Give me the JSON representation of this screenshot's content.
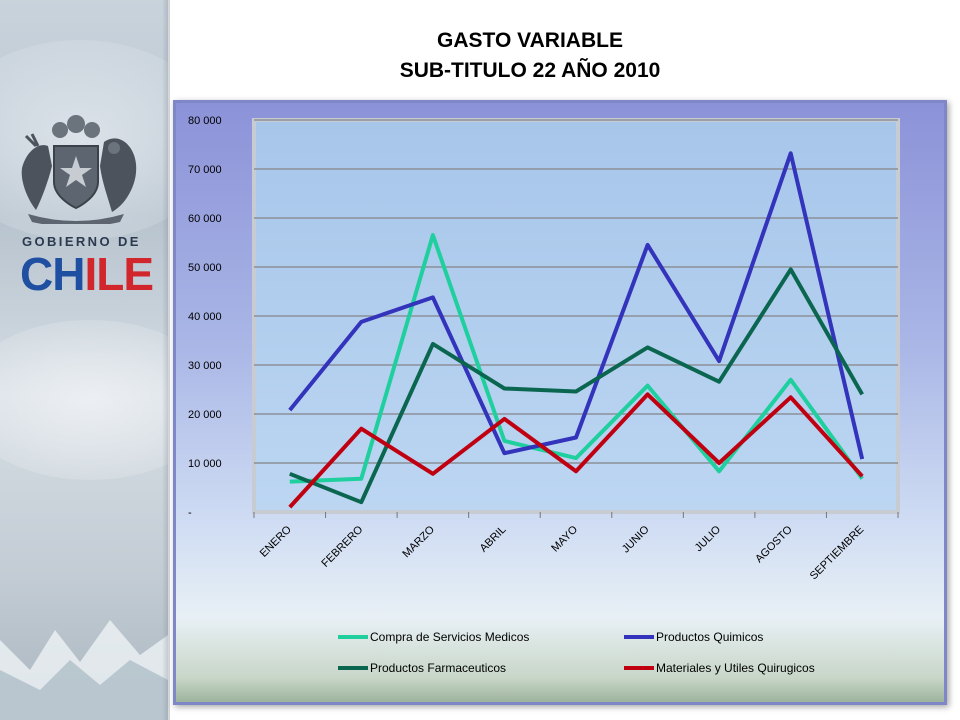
{
  "title_line1": "GASTO VARIABLE",
  "title_line2": "SUB-TITULO 22 AÑO 2010",
  "logo": {
    "icon": "chilean-coat-of-arms-icon",
    "line1": "GOBIERNO DE",
    "line2": "CHILE",
    "colors": {
      "blue": "#1f4fa0",
      "red": "#d1262b"
    }
  },
  "chart_data": {
    "type": "line",
    "categories": [
      "ENERO",
      "FEBRERO",
      "MARZO",
      "ABRIL",
      "MAYO",
      "JUNIO",
      "JULIO",
      "AGOSTO",
      "SEPTIEMBRE"
    ],
    "ylim": [
      0,
      80000
    ],
    "yticks": [
      0,
      10000,
      20000,
      30000,
      40000,
      50000,
      60000,
      70000,
      80000
    ],
    "ytick_labels": [
      "-",
      "10 000",
      "20 000",
      "30 000",
      "40 000",
      "50 000",
      "60 000",
      "70 000",
      "80 000"
    ],
    "grid": true,
    "legend_position": "bottom",
    "series": [
      {
        "name": "Compra de Servicios Medicos",
        "color": "#1fcf9e",
        "values": [
          6200,
          6800,
          56500,
          14500,
          11000,
          25800,
          8300,
          27000,
          6800
        ]
      },
      {
        "name": "Productos Quimicos",
        "color": "#3333bb",
        "values": [
          20800,
          38800,
          43800,
          12000,
          15200,
          54500,
          30800,
          73200,
          10800
        ]
      },
      {
        "name": "Productos Farmaceuticos",
        "color": "#0b6650",
        "values": [
          7800,
          2000,
          34300,
          25200,
          24600,
          33600,
          26600,
          49500,
          24000
        ]
      },
      {
        "name": "Materiales y Utiles Quirugicos",
        "color": "#c00010",
        "values": [
          1000,
          17000,
          7800,
          19000,
          8300,
          24000,
          10000,
          23400,
          7300
        ]
      }
    ]
  }
}
